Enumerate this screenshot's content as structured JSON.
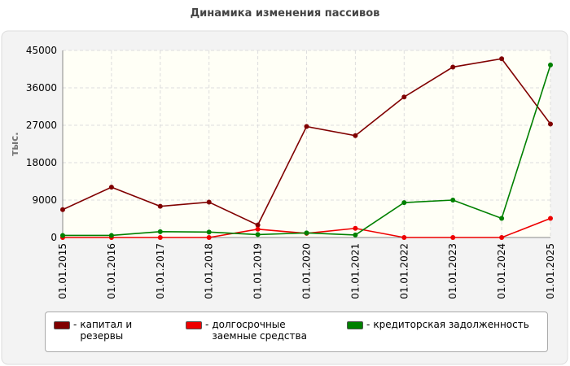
{
  "chart_data": {
    "type": "line",
    "title": "Динамика изменения пассивов",
    "y_label": "тыс.",
    "categories": [
      "01.01.2015",
      "01.01.2016",
      "01.01.2017",
      "01.01.2018",
      "01.01.2019",
      "01.01.2020",
      "01.01.2021",
      "01.01.2022",
      "01.01.2023",
      "01.01.2024",
      "01.01.2025"
    ],
    "series": [
      {
        "name": "капитал и резервы",
        "color": "#800000",
        "values": [
          6700,
          12100,
          7500,
          8500,
          3000,
          26700,
          24500,
          33800,
          41000,
          43000,
          27300
        ]
      },
      {
        "name": "долгосрочные заемные средства",
        "color": "#ee0000",
        "values": [
          0,
          0,
          0,
          0,
          2000,
          1000,
          2200,
          0,
          0,
          0,
          4600
        ]
      },
      {
        "name": "кредиторская задолженность",
        "color": "#008000",
        "values": [
          500,
          500,
          1400,
          1300,
          700,
          1100,
          600,
          8400,
          9000,
          4600,
          41500
        ]
      }
    ],
    "ylim": [
      0,
      45000
    ],
    "yticks": [
      0,
      9000,
      18000,
      27000,
      36000,
      45000
    ],
    "grid": true
  }
}
